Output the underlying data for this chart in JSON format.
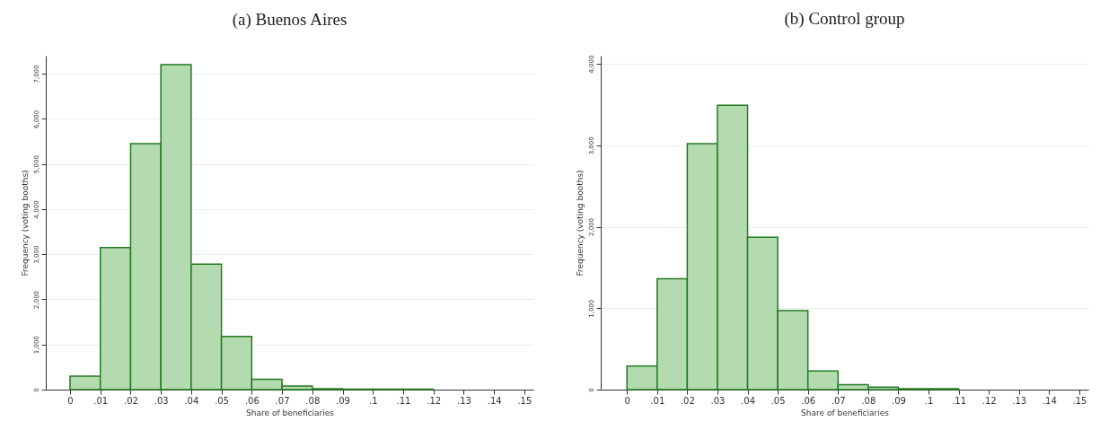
{
  "chart_data": [
    {
      "type": "histogram",
      "title": "(a) Buenos Aires",
      "xlabel": "Share of beneficiaries",
      "ylabel": "Frequency (voting booths)",
      "bins": [
        0,
        0.01,
        0.02,
        0.03,
        0.04,
        0.05,
        0.06,
        0.07,
        0.08,
        0.09,
        0.1,
        0.11,
        0.12
      ],
      "values": [
        300,
        3150,
        5450,
        7200,
        2780,
        1180,
        230,
        80,
        20,
        10,
        10,
        10
      ],
      "color": "#b4dab0",
      "xlim": [
        -0.008,
        0.153
      ],
      "xticks": [
        0,
        {
          "value": 0.01,
          "label": ".01"
        },
        {
          "value": 0.02,
          "label": ".02"
        },
        {
          "value": 0.03,
          "label": ".03"
        },
        {
          "value": 0.04,
          "label": ".04"
        },
        {
          "value": 0.05,
          "label": ".05"
        },
        {
          "value": 0.06,
          "label": ".06"
        },
        {
          "value": 0.07,
          "label": ".07"
        },
        {
          "value": 0.08,
          "label": ".08"
        },
        {
          "value": 0.09,
          "label": ".09"
        },
        {
          "value": 0.1,
          "label": ".1"
        },
        {
          "value": 0.11,
          "label": ".11"
        },
        {
          "value": 0.12,
          "label": ".12"
        },
        {
          "value": 0.13,
          "label": ".13"
        },
        {
          "value": 0.14,
          "label": ".14"
        },
        {
          "value": 0.15,
          "label": ".15"
        }
      ],
      "ylim": [
        0,
        7400
      ],
      "yticks": [
        0,
        {
          "value": 1000,
          "label": "1,000"
        },
        {
          "value": 2000,
          "label": "2,000"
        },
        {
          "value": 3000,
          "label": "3,000"
        },
        {
          "value": 4000,
          "label": "4,000"
        },
        {
          "value": 5000,
          "label": "5,000"
        },
        {
          "value": 6000,
          "label": "6,000"
        },
        {
          "value": 7000,
          "label": "7,000"
        }
      ],
      "grid": "y"
    },
    {
      "type": "histogram",
      "title": "(b) Control group",
      "xlabel": "Share of beneficiaries",
      "ylabel": "Frequency (voting booths)",
      "bins": [
        0,
        0.01,
        0.02,
        0.03,
        0.04,
        0.05,
        0.06,
        0.07,
        0.08,
        0.09,
        0.1,
        0.11
      ],
      "values": [
        290,
        1360,
        3020,
        3490,
        1870,
        970,
        230,
        60,
        30,
        10,
        10
      ],
      "color": "#b4dab0",
      "xlim": [
        -0.0087,
        0.153
      ],
      "xticks": [
        0,
        {
          "value": 0.01,
          "label": ".01"
        },
        {
          "value": 0.02,
          "label": ".02"
        },
        {
          "value": 0.03,
          "label": ".03"
        },
        {
          "value": 0.04,
          "label": ".04"
        },
        {
          "value": 0.05,
          "label": ".05"
        },
        {
          "value": 0.06,
          "label": ".06"
        },
        {
          "value": 0.07,
          "label": ".07"
        },
        {
          "value": 0.08,
          "label": ".08"
        },
        {
          "value": 0.09,
          "label": ".09"
        },
        {
          "value": 0.1,
          "label": ".1"
        },
        {
          "value": 0.11,
          "label": ".11"
        },
        {
          "value": 0.12,
          "label": ".12"
        },
        {
          "value": 0.13,
          "label": ".13"
        },
        {
          "value": 0.14,
          "label": ".14"
        },
        {
          "value": 0.15,
          "label": ".15"
        }
      ],
      "ylim": [
        0,
        4100
      ],
      "yticks": [
        0,
        {
          "value": 1000,
          "label": "1,000"
        },
        {
          "value": 2000,
          "label": "2,000"
        },
        {
          "value": 3000,
          "label": "3,000"
        },
        {
          "value": 4000,
          "label": "4,000"
        }
      ],
      "grid": "y"
    }
  ]
}
